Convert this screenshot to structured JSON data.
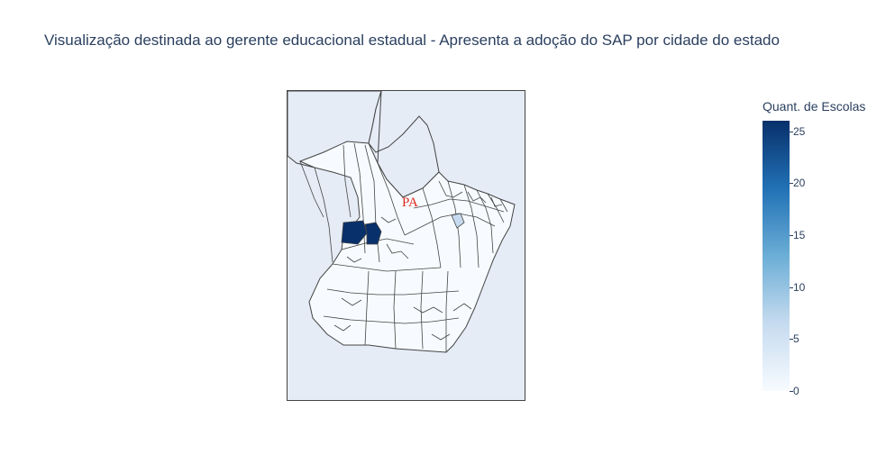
{
  "title": "Visualização destinada ao gerente educacional estadual - Apresenta a adoção do SAP por cidade do estado",
  "map": {
    "state_label": "PA",
    "water_color": "#e5ecf6",
    "border_color": "#444444",
    "base_fill": "#f7fbff",
    "highlight_fill": "#08306b",
    "mid_fill": "#c6dbef"
  },
  "colorbar": {
    "title": "Quant. de Escolas",
    "min": 0,
    "max": 26,
    "ticks": [
      "0",
      "5",
      "10",
      "15",
      "20",
      "25"
    ],
    "tick_values": [
      0,
      5,
      10,
      15,
      20,
      25
    ],
    "colors": [
      "#f7fbff",
      "#c6dbef",
      "#6baed6",
      "#2171b5",
      "#08306b"
    ]
  },
  "chart_data": {
    "type": "choropleth",
    "title": "Visualização destinada ao gerente educacional estadual - Apresenta a adoção do SAP por cidade do estado",
    "region": "PA",
    "colorbar_title": "Quant. de Escolas",
    "zrange": [
      0,
      26
    ],
    "highlighted": [
      {
        "value": 26
      },
      {
        "value": 26
      },
      {
        "value": 7
      }
    ]
  }
}
